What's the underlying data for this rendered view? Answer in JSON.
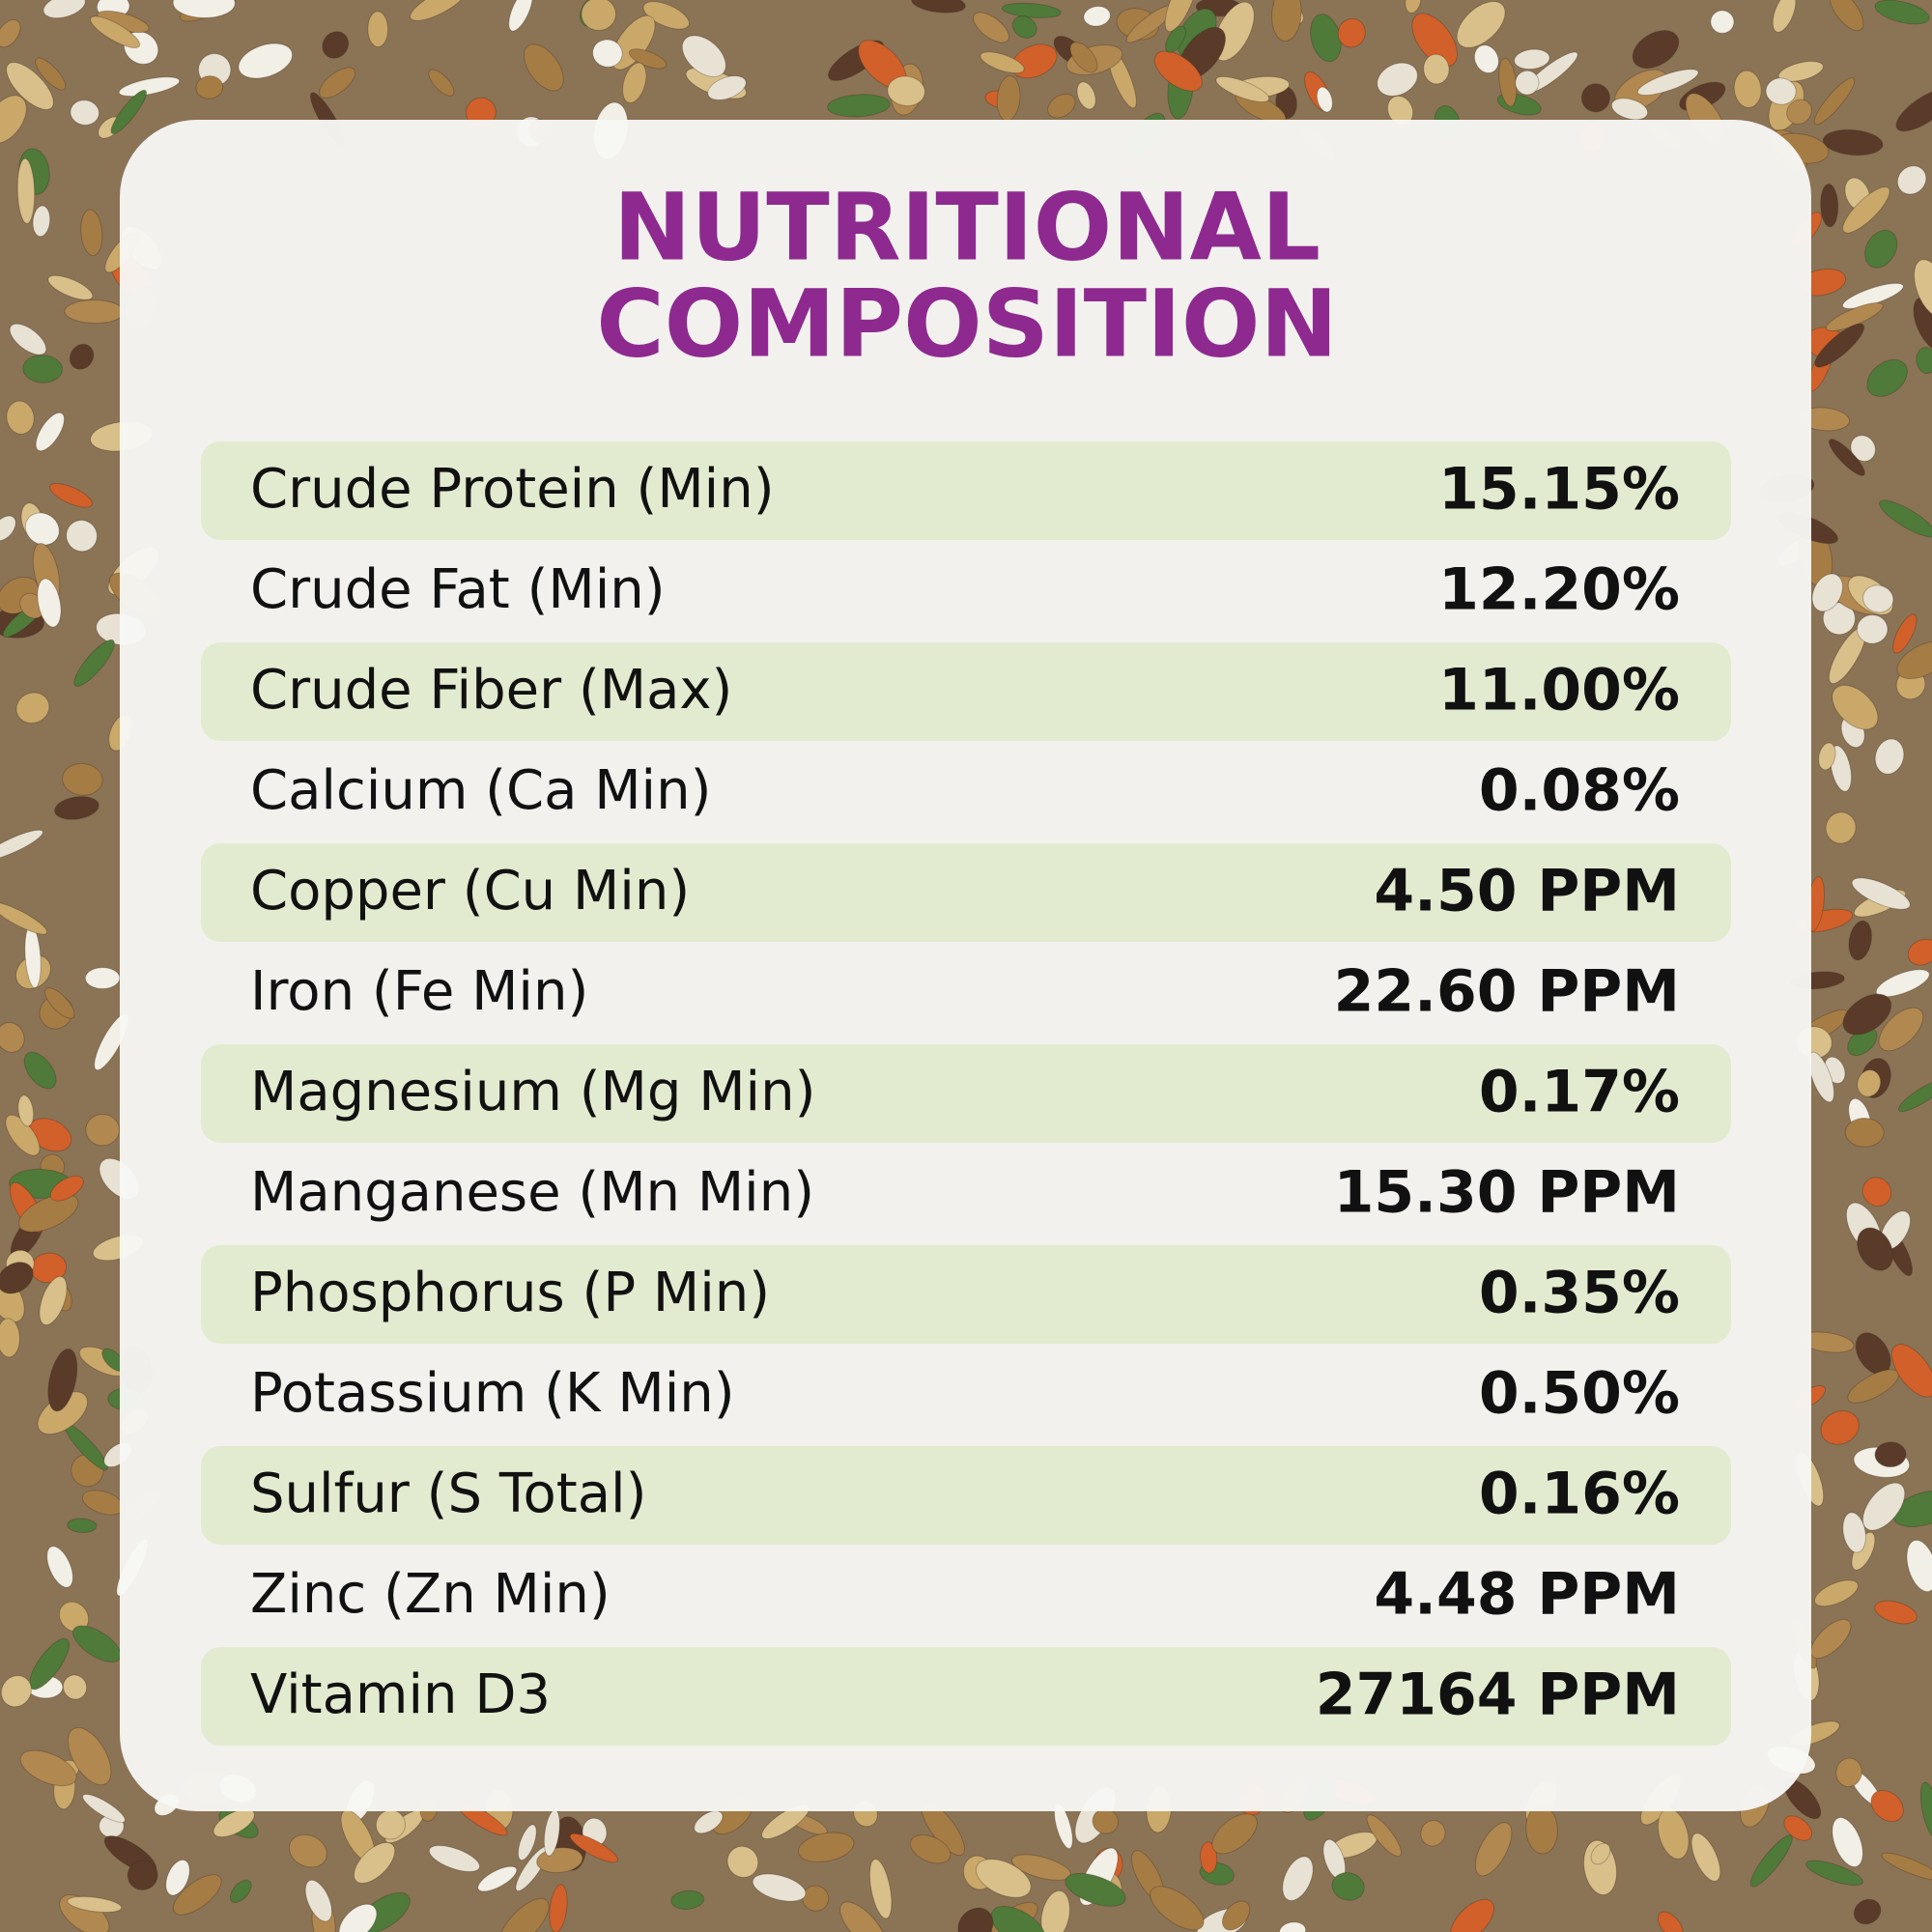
{
  "header": {
    "title_lines": [
      "NUTRITIONAL",
      "COMPOSITION"
    ]
  },
  "table": {
    "rows": [
      [
        "Crude Protein (Min)",
        "15.15%"
      ],
      [
        "Crude Fat (Min)",
        "12.20%"
      ],
      [
        "Crude Fiber (Max)",
        "11.00%"
      ],
      [
        "Calcium (Ca Min)",
        "0.08%"
      ],
      [
        "Copper (Cu Min)",
        "4.50 PPM"
      ],
      [
        "Iron (Fe Min)",
        "22.60 PPM"
      ],
      [
        "Magnesium (Mg Min)",
        "0.17%"
      ],
      [
        "Manganese (Mn Min)",
        "15.30 PPM"
      ],
      [
        "Phosphorus (P Min)",
        "0.35%"
      ],
      [
        "Potassium (K Min)",
        "0.50%"
      ],
      [
        "Sulfur (S Total)",
        "0.16%"
      ],
      [
        "Zinc (Zn Min)",
        "4.48 PPM"
      ],
      [
        "Vitamin D3",
        "27164 PPM"
      ]
    ]
  }
}
